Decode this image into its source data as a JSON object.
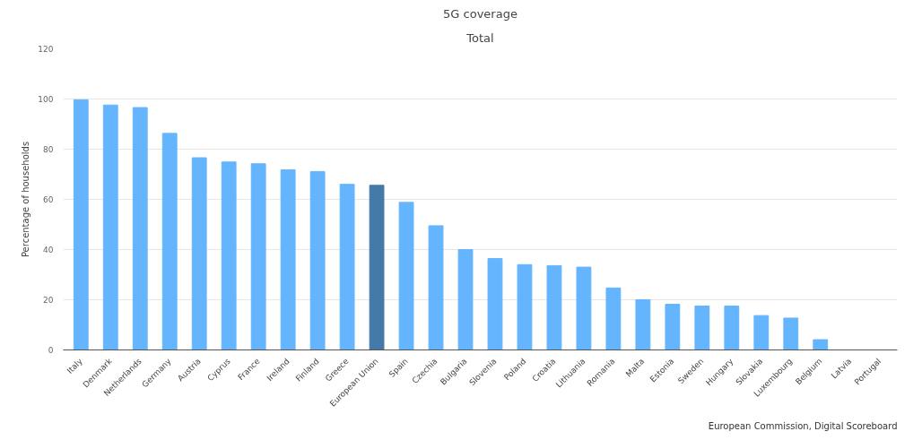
{
  "chart_data": {
    "type": "bar",
    "title": "5G coverage",
    "subtitle": "Total",
    "ylabel": "Percentage of households",
    "categories": [
      "Italy",
      "Denmark",
      "Netherlands",
      "Germany",
      "Austria",
      "Cyprus",
      "France",
      "Ireland",
      "Finland",
      "Greece",
      "European Union",
      "Spain",
      "Czechia",
      "Bulgaria",
      "Slovenia",
      "Poland",
      "Croatia",
      "Lithuania",
      "Romania",
      "Malta",
      "Estonia",
      "Sweden",
      "Hungary",
      "Slovakia",
      "Luxembourg",
      "Belgium",
      "Latvia",
      "Portugal"
    ],
    "values": [
      99.7,
      97.6,
      96.6,
      86.3,
      76.6,
      74.9,
      74.2,
      71.8,
      71.1,
      66,
      65.6,
      58.8,
      49.5,
      40,
      36.4,
      34,
      33.6,
      33,
      24.7,
      20,
      18.2,
      17.5,
      17.5,
      13.7,
      12.7,
      4.1,
      0,
      0
    ],
    "colors": [
      "#64b5fe",
      "#64b5fe",
      "#64b5fe",
      "#64b5fe",
      "#64b5fe",
      "#64b5fe",
      "#64b5fe",
      "#64b5fe",
      "#64b5fe",
      "#64b5fe",
      "#4479a8",
      "#64b5fe",
      "#64b5fe",
      "#64b5fe",
      "#64b5fe",
      "#64b5fe",
      "#64b5fe",
      "#64b5fe",
      "#64b5fe",
      "#64b5fe",
      "#64b5fe",
      "#64b5fe",
      "#64b5fe",
      "#64b5fe",
      "#64b5fe",
      "#64b5fe",
      "#64b5fe",
      "#64b5fe"
    ],
    "ylim": [
      0,
      120
    ],
    "yticks": [
      0,
      20,
      40,
      60,
      80,
      100,
      120
    ],
    "grid": "y",
    "annotations": [
      "European Commission, Digital Scoreboard"
    ]
  }
}
